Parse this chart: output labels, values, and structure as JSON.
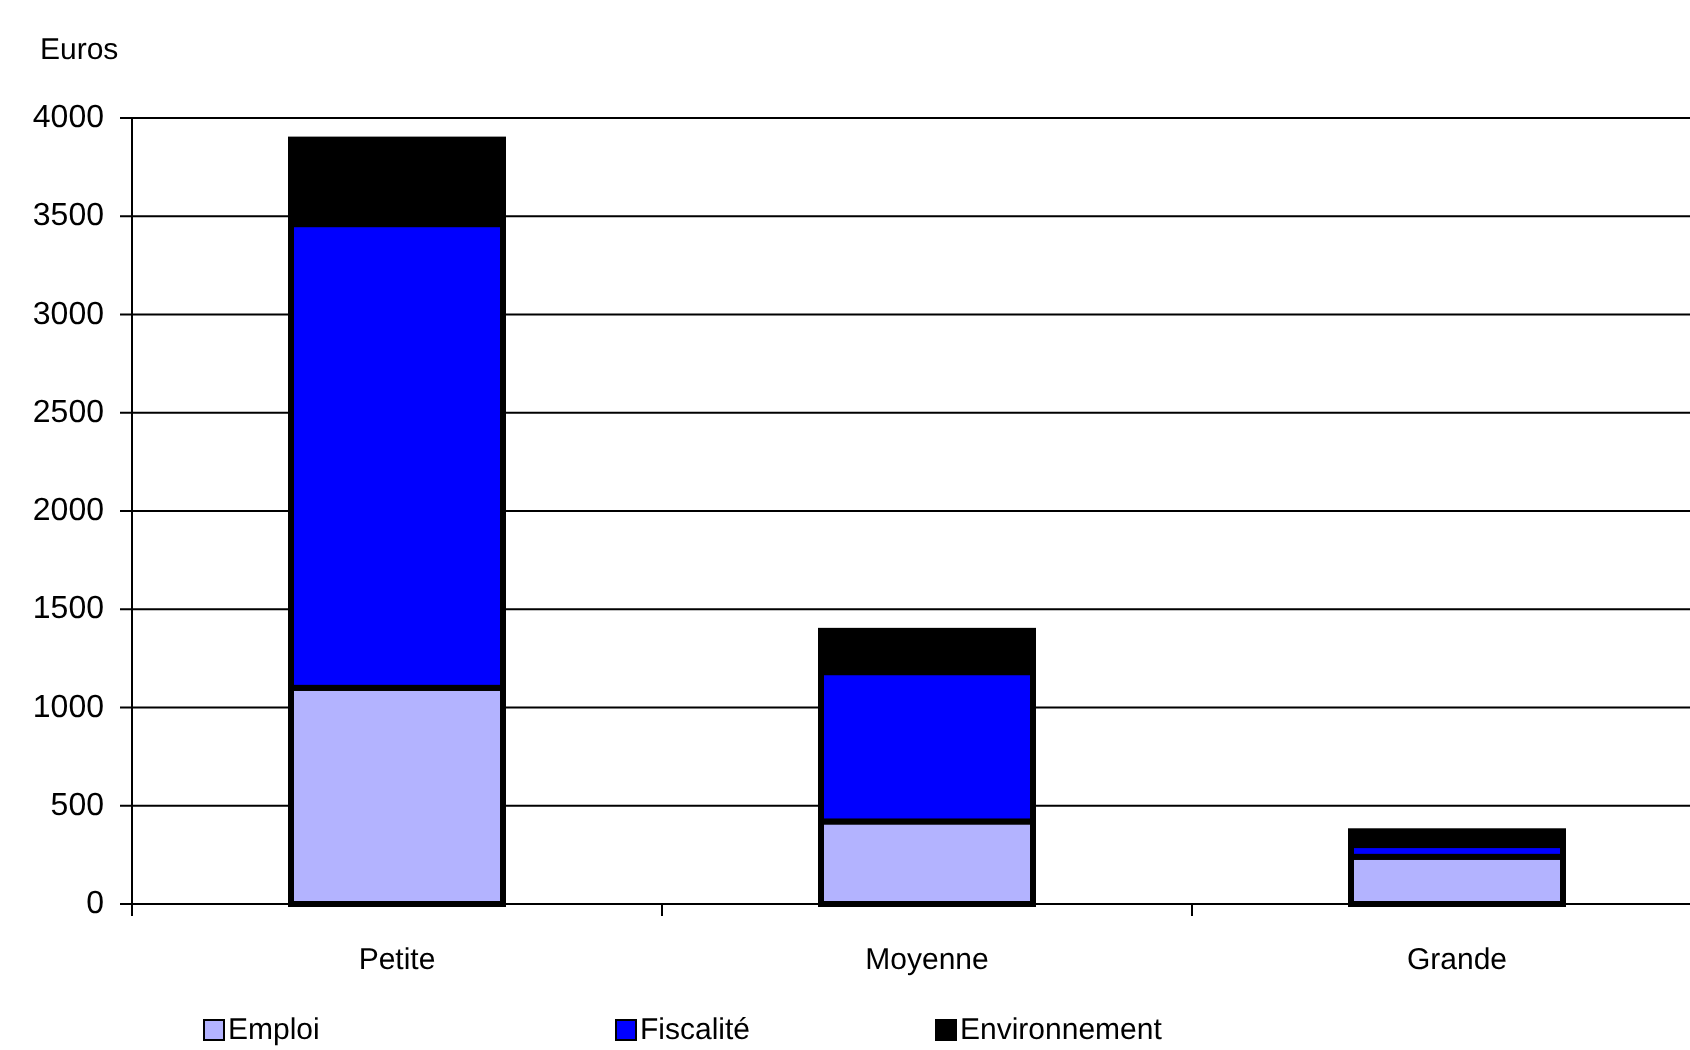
{
  "chart_data": {
    "type": "bar",
    "ylabel": "Euros",
    "categories": [
      "Petite",
      "Moyenne",
      "Grande"
    ],
    "stacked": true,
    "series": [
      {
        "name": "Emploi",
        "color": "#b3b3ff",
        "values": [
          1100,
          420,
          240
        ]
      },
      {
        "name": "Fiscalité",
        "color": "#0000ff",
        "values": [
          2360,
          760,
          60
        ]
      },
      {
        "name": "Environnement",
        "color": "#000000",
        "values": [
          430,
          210,
          70
        ]
      }
    ],
    "ylim": [
      0,
      4000
    ],
    "yticks": [
      0,
      500,
      1000,
      1500,
      2000,
      2500,
      3000,
      3500,
      4000
    ],
    "grid": "y",
    "legend": "bottom"
  }
}
